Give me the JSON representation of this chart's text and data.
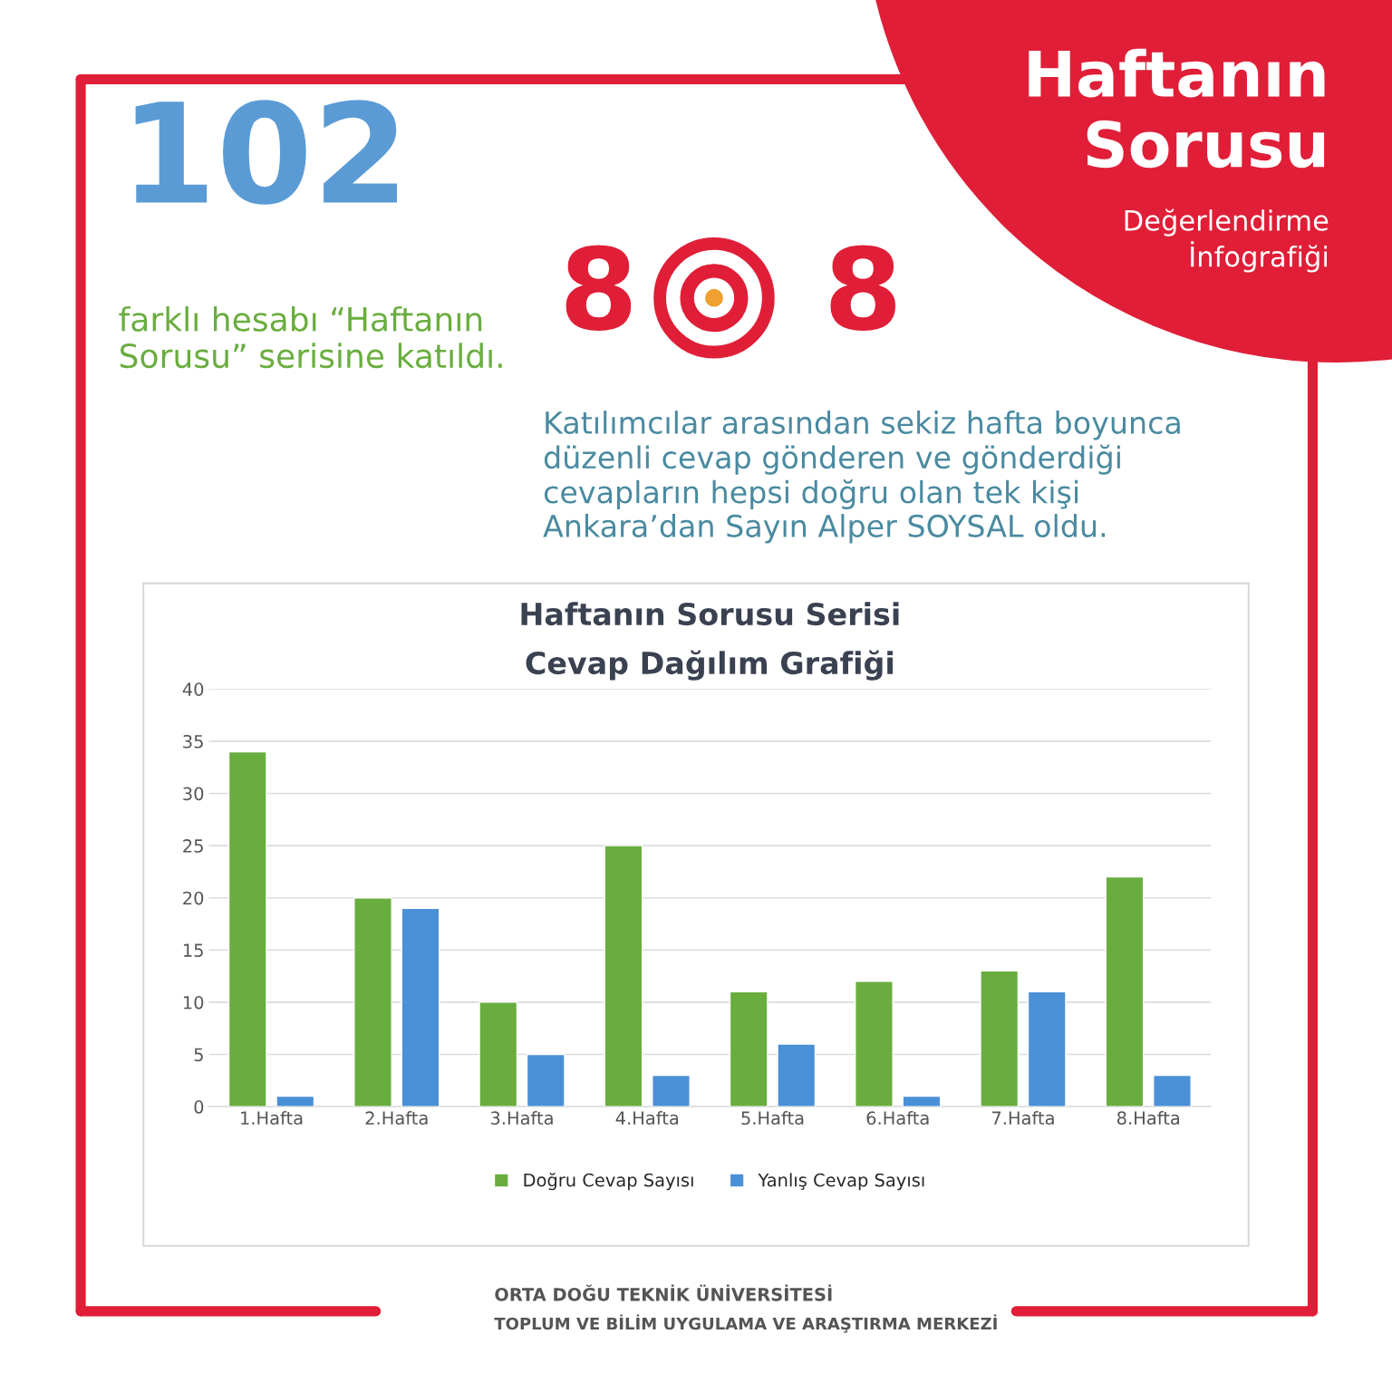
{
  "chart_data": {
    "type": "bar",
    "title": "Haftanın Sorusu Serisi\nCevap Dağılım Grafiği",
    "categories": [
      "1.Hafta",
      "2.Hafta",
      "3.Hafta",
      "4.Hafta",
      "5.Hafta",
      "6.Hafta",
      "7.Hafta",
      "8.Hafta"
    ],
    "series": [
      {
        "name": "Doğru Cevap Sayısı",
        "color": "#6aad3f",
        "values": [
          34,
          20,
          10,
          25,
          11,
          12,
          13,
          22
        ]
      },
      {
        "name": "Yanlış Cevap Sayısı",
        "color": "#4a90d6",
        "values": [
          1,
          19,
          5,
          3,
          6,
          1,
          11,
          3
        ]
      }
    ],
    "ylim": [
      0,
      40
    ],
    "yticks": [
      0,
      5,
      10,
      15,
      20,
      25,
      30,
      35,
      40
    ],
    "grid": "y",
    "legend": "bottom",
    "annotations": [
      "Haftanın Sorusu",
      "Değerlendirme İnfografiği",
      "102",
      "farklı hesabı “Haftanın Sorusu” serisine katıldı.",
      "8",
      "8",
      "Katılımcılar arasından sekiz hafta boyunca düzenli cevap gönderen ve gönderdiği cevapların hepsi doğru olan tek kişi Ankara’dan Sayın Alper SOYSAL oldu.",
      "ORTA DOĞU TEKNİK ÜNİVERSİTESİ",
      "TOPLUM VE BİLİM UYGULAMA VE ARAŞTIRMA MERKEZİ"
    ]
  }
}
